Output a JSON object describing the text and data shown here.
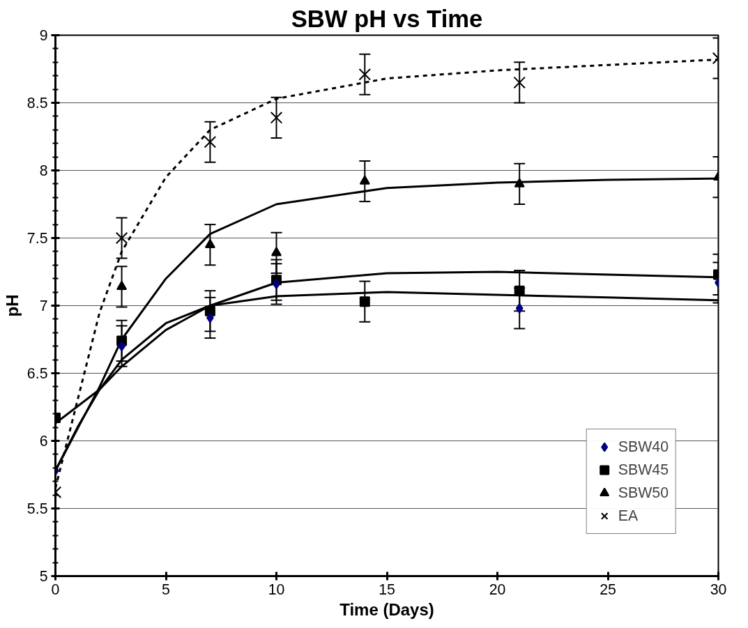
{
  "chart_data": {
    "type": "scatter",
    "title": "SBW pH vs Time",
    "xlabel": "Time (Days)",
    "ylabel": "pH",
    "x": [
      0,
      3,
      7,
      10,
      14,
      21,
      30
    ],
    "xlim": [
      0,
      30
    ],
    "xticks": [
      0,
      5,
      10,
      15,
      20,
      25,
      30
    ],
    "ylim": [
      5,
      9
    ],
    "yticks": [
      5,
      5.5,
      6,
      6.5,
      7,
      7.5,
      8,
      8.5,
      9
    ],
    "grid": "y",
    "legend": "bottom right",
    "series": [
      {
        "name": "SBW40",
        "color": "#000080",
        "marker": "diamond",
        "values": [
          5.78,
          6.7,
          6.91,
          7.16,
          null,
          6.98,
          7.17
        ],
        "errors": [
          null,
          0.15,
          0.15,
          0.15,
          null,
          0.15,
          0.15
        ]
      },
      {
        "name": "SBW45",
        "color": "#000000",
        "marker": "square",
        "values": [
          6.17,
          6.74,
          6.96,
          7.19,
          7.03,
          7.11,
          7.23
        ],
        "errors": [
          null,
          0.15,
          0.15,
          0.15,
          0.15,
          0.15,
          0.15
        ]
      },
      {
        "name": "SBW50",
        "color": "#000000",
        "marker": "triangle",
        "values": [
          null,
          7.14,
          7.45,
          7.39,
          7.92,
          7.9,
          7.95
        ],
        "errors": [
          null,
          0.15,
          0.15,
          0.15,
          0.15,
          0.15,
          0.15
        ]
      },
      {
        "name": "EA",
        "color": "#000000",
        "marker": "cross",
        "values": [
          5.62,
          7.5,
          8.21,
          8.39,
          8.71,
          8.65,
          8.83
        ],
        "errors": [
          null,
          0.15,
          0.15,
          0.15,
          0.15,
          0.15,
          0.15
        ]
      },
      {
        "type": "line",
        "color": "#000000",
        "line_style": "solid",
        "x": [
          0,
          1,
          2,
          3,
          5,
          7,
          10,
          15,
          20,
          25,
          30
        ],
        "values": [
          5.78,
          6.1,
          6.38,
          6.6,
          6.87,
          7.0,
          7.07,
          7.1,
          7.08,
          7.06,
          7.04
        ]
      },
      {
        "type": "line",
        "color": "#000000",
        "line_style": "solid",
        "x": [
          0,
          2,
          3,
          5,
          7,
          10,
          15,
          20,
          25,
          30
        ],
        "values": [
          6.13,
          6.38,
          6.55,
          6.82,
          7.0,
          7.17,
          7.24,
          7.25,
          7.23,
          7.21
        ]
      },
      {
        "type": "line",
        "color": "#000000",
        "line_style": "solid",
        "x": [
          0,
          2,
          3,
          5,
          7,
          10,
          15,
          20,
          25,
          30
        ],
        "values": [
          5.78,
          6.4,
          6.75,
          7.2,
          7.53,
          7.75,
          7.87,
          7.91,
          7.93,
          7.94
        ]
      },
      {
        "type": "line",
        "color": "#000000",
        "line_style": "dashed",
        "x": [
          0,
          1,
          2,
          3,
          5,
          7,
          10,
          15,
          20,
          25,
          30
        ],
        "values": [
          5.65,
          6.3,
          6.95,
          7.4,
          7.95,
          8.3,
          8.53,
          8.68,
          8.74,
          8.78,
          8.82
        ]
      }
    ]
  }
}
